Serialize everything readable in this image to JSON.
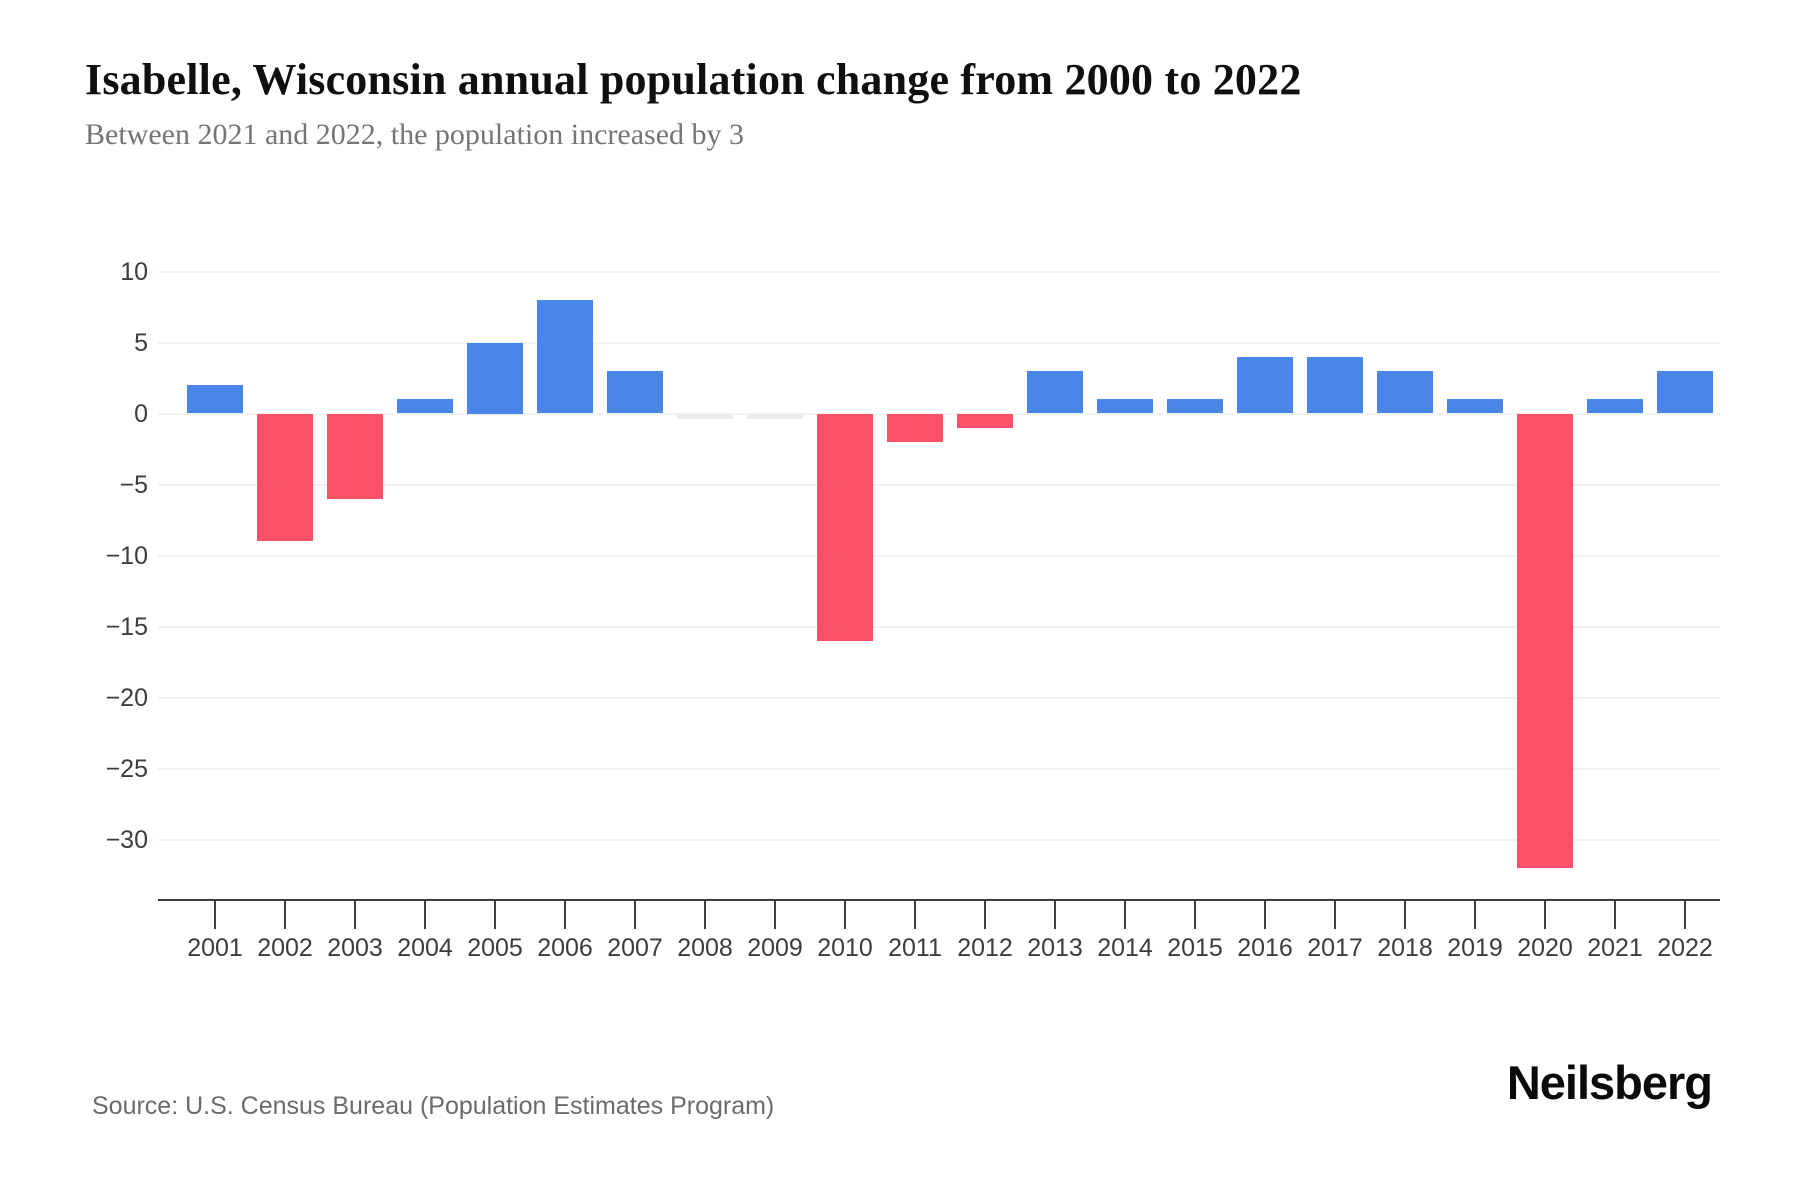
{
  "header": {
    "title": "Isabelle, Wisconsin annual population change from 2000 to 2022",
    "subtitle": "Between 2021 and 2022, the population increased by 3"
  },
  "chart_data": {
    "type": "bar",
    "categories": [
      "2001",
      "2002",
      "2003",
      "2004",
      "2005",
      "2006",
      "2007",
      "2008",
      "2009",
      "2010",
      "2011",
      "2012",
      "2013",
      "2014",
      "2015",
      "2016",
      "2017",
      "2018",
      "2019",
      "2020",
      "2021",
      "2022"
    ],
    "values": [
      2,
      -9,
      -6,
      1,
      5,
      8,
      3,
      0,
      0,
      -16,
      -2,
      -1,
      3,
      1,
      1,
      4,
      4,
      3,
      1,
      -32,
      1,
      3
    ],
    "title": "Isabelle, Wisconsin annual population change from 2000 to 2022",
    "subtitle": "Between 2021 and 2022, the population increased by 3",
    "xlabel": "",
    "ylabel": "",
    "ylim": [
      -34,
      11
    ],
    "yticks": [
      10,
      5,
      0,
      -5,
      -10,
      -15,
      -20,
      -25,
      -30
    ],
    "grid": true,
    "legend_position": "none",
    "colors": {
      "positive_bar": "#4a86e8",
      "negative_bar": "#fa5168",
      "zero_bar": "#ececec",
      "gridline": "#f2f2f2",
      "axis": "#3d3d3d",
      "tick_label": "#3d3d3d"
    }
  },
  "footer": {
    "source": "Source: U.S. Census Bureau (Population Estimates Program)",
    "brand": "Neilsberg"
  }
}
